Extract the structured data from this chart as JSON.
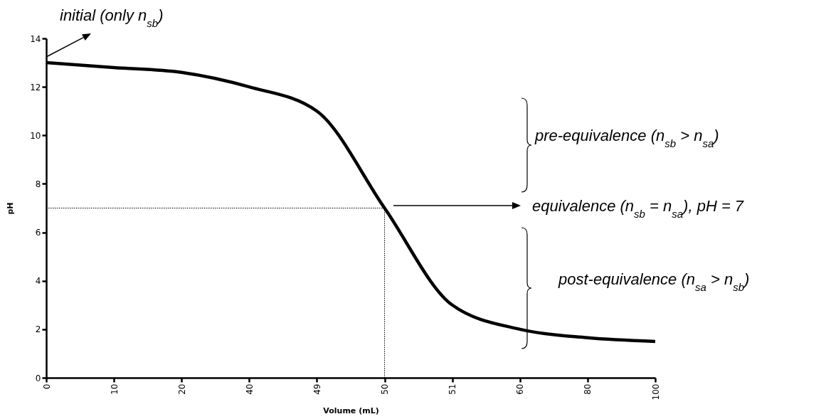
{
  "chart_data": {
    "type": "line",
    "xlabel": "Volume (mL)",
    "ylabel": "pH",
    "categories": [
      "0",
      "10",
      "20",
      "40",
      "49",
      "50",
      "51",
      "60",
      "80",
      "100"
    ],
    "series": [
      {
        "color": "#000000",
        "values": [
          13.0,
          12.8,
          12.6,
          12.0,
          11.0,
          7.0,
          3.0,
          2.0,
          1.65,
          1.5
        ]
      }
    ],
    "ylim": [
      0,
      14
    ],
    "yticks": [
      0,
      2,
      4,
      6,
      8,
      10,
      12,
      14
    ],
    "ref_lines": [
      {
        "axis": "y",
        "value": 7,
        "line_style": "dotted"
      },
      {
        "axis": "x",
        "value": "50",
        "line_style": "dotted"
      }
    ],
    "annotations": [
      "initial (only n$_{sb}$)",
      "pre-equivalence (n$_{sb}$ > n$_{sa}$)",
      "equivalence (n$_{sb}$ = n$_{sa}$), pH = 7",
      "post-equivalence (n$_{sa}$ > n$_{sb}$)"
    ]
  }
}
